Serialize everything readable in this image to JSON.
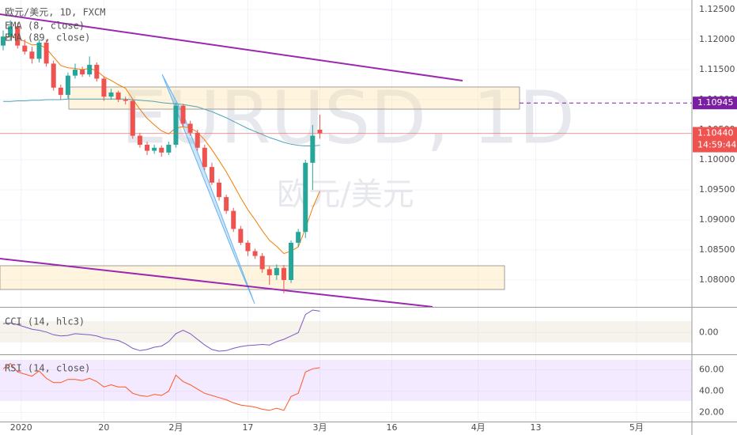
{
  "chart_data": [
    {
      "type": "candlestick",
      "title": "欧元/美元, 1D, FXCM",
      "watermark": "EURUSD, 1D",
      "watermark_subtitle": "欧元/美元",
      "up_color": "#26a69a",
      "down_color": "#ef5350",
      "ohlc": {
        "open": [
          1.119,
          1.1205,
          1.1222,
          1.119,
          1.118,
          1.1168,
          1.1195,
          1.116,
          1.112,
          1.1108,
          1.114,
          1.115,
          1.1142,
          1.1158,
          1.1135,
          1.1105,
          1.1112,
          1.11,
          1.1098,
          1.104,
          1.1025,
          1.1015,
          1.102,
          1.1012,
          1.1025,
          1.109,
          1.106,
          1.1045,
          1.102,
          1.0988,
          1.0962,
          1.0938,
          1.0915,
          1.0885,
          1.0862,
          1.0848,
          1.084,
          1.0818,
          1.0808,
          1.082,
          1.08,
          1.0862,
          1.088,
          1.0995,
          1.105
        ],
        "high": [
          1.1215,
          1.1232,
          1.1228,
          1.12,
          1.1188,
          1.12,
          1.12,
          1.1165,
          1.1125,
          1.1145,
          1.116,
          1.1155,
          1.1172,
          1.1162,
          1.1138,
          1.1118,
          1.1115,
          1.1105,
          1.11,
          1.1045,
          1.103,
          1.1025,
          1.1024,
          1.103,
          1.1095,
          1.1093,
          1.1065,
          1.105,
          1.1025,
          1.0995,
          1.0968,
          1.0942,
          1.092,
          1.089,
          1.0866,
          1.0852,
          1.0845,
          1.0823,
          1.0826,
          1.0825,
          1.0866,
          1.0885,
          1.1,
          1.1058,
          1.1075
        ],
        "low": [
          1.1182,
          1.1198,
          1.1185,
          1.1175,
          1.116,
          1.1162,
          1.1155,
          1.1115,
          1.11,
          1.1102,
          1.1135,
          1.1138,
          1.1138,
          1.113,
          1.1098,
          1.11,
          1.1096,
          1.1092,
          1.1035,
          1.102,
          1.1008,
          1.101,
          1.1005,
          1.1008,
          1.102,
          1.1055,
          1.104,
          1.1015,
          1.0983,
          1.0958,
          1.0932,
          1.091,
          1.088,
          1.0858,
          1.084,
          1.0835,
          1.0812,
          1.0792,
          1.08,
          1.0778,
          1.0795,
          1.0855,
          1.087,
          1.095,
          1.1035
        ],
        "close": [
          1.1205,
          1.1222,
          1.119,
          1.118,
          1.1168,
          1.1195,
          1.116,
          1.112,
          1.1108,
          1.114,
          1.115,
          1.1142,
          1.1158,
          1.1135,
          1.1105,
          1.1112,
          1.11,
          1.1098,
          1.104,
          1.1025,
          1.1015,
          1.102,
          1.1012,
          1.1025,
          1.109,
          1.106,
          1.1045,
          1.102,
          1.0988,
          1.0962,
          1.0938,
          1.0915,
          1.0885,
          1.0862,
          1.0848,
          1.084,
          1.0818,
          1.0808,
          1.082,
          1.08,
          1.0862,
          1.088,
          1.0995,
          1.104,
          1.1044
        ]
      },
      "series": [
        {
          "name": "EMA (8, close)",
          "color": "#f57c00",
          "values": [
            1.12,
            1.1205,
            1.1202,
            1.1197,
            1.1191,
            1.1192,
            1.1185,
            1.1171,
            1.1157,
            1.1153,
            1.1152,
            1.115,
            1.1152,
            1.1148,
            1.1138,
            1.1132,
            1.1125,
            1.1119,
            1.1101,
            1.1084,
            1.1069,
            1.1058,
            1.1048,
            1.1043,
            1.1053,
            1.1055,
            1.1053,
            1.1046,
            1.1033,
            1.1017,
            1.0999,
            1.098,
            1.0959,
            1.0937,
            1.0917,
            1.09,
            1.0882,
            1.0866,
            1.0856,
            1.0844,
            1.0848,
            1.0855,
            1.0886,
            1.092,
            1.0948
          ]
        },
        {
          "name": "EMA (89, close)",
          "color": "#4fa3b8",
          "values": [
            1.1097,
            1.1097,
            1.1098,
            1.1098,
            1.1099,
            1.1099,
            1.11,
            1.11,
            1.11,
            1.1101,
            1.1101,
            1.1101,
            1.1101,
            1.1101,
            1.1101,
            1.1101,
            1.1101,
            1.1101,
            1.11,
            1.1099,
            1.1098,
            1.1097,
            1.1095,
            1.1094,
            1.1093,
            1.1092,
            1.109,
            1.1088,
            1.1084,
            1.108,
            1.1075,
            1.107,
            1.1064,
            1.1058,
            1.1052,
            1.1047,
            1.1042,
            1.1037,
            1.1033,
            1.1029,
            1.1026,
            1.1024,
            1.1023,
            1.1023,
            1.1024
          ]
        }
      ],
      "price_lines": [
        {
          "value": 1.10945,
          "label": "1.10945",
          "color": "#7b1fa2"
        },
        {
          "value": 1.1044,
          "label": "1.10440",
          "color": "#ef5350",
          "countdown": "14:59:44"
        }
      ],
      "ylim": [
        1.07553,
        1.12658
      ],
      "yticks": [
        {
          "value": 1.125,
          "label": "1.12500"
        },
        {
          "value": 1.12,
          "label": "1.12000"
        },
        {
          "value": 1.115,
          "label": "1.11500"
        },
        {
          "value": 1.11,
          "label": "1.11000"
        },
        {
          "value": 1.105,
          "label": "1.10500"
        },
        {
          "value": 1.1,
          "label": "1.10000"
        },
        {
          "value": 1.095,
          "label": "1.09500"
        },
        {
          "value": 1.09,
          "label": "1.09000"
        },
        {
          "value": 1.085,
          "label": "1.08500"
        },
        {
          "value": 1.08,
          "label": "1.08000"
        }
      ],
      "grid": true
    },
    {
      "type": "line",
      "series": [
        {
          "name": "CCI (14, hlc3)",
          "color": "#7e57c2",
          "values": [
            80,
            85,
            70,
            50,
            30,
            20,
            5,
            -20,
            -30,
            -25,
            -10,
            -15,
            -20,
            -30,
            -50,
            -60,
            -70,
            -100,
            -140,
            -160,
            -150,
            -130,
            -120,
            -80,
            -10,
            20,
            -10,
            -60,
            -110,
            -150,
            -165,
            -160,
            -140,
            -125,
            -115,
            -110,
            -105,
            -110,
            -80,
            -60,
            -30,
            0,
            160,
            200,
            190
          ]
        }
      ],
      "ylim": [
        -193,
        221
      ],
      "yticks": [
        {
          "value": 0,
          "label": "0.00"
        }
      ],
      "grid": true
    },
    {
      "type": "line",
      "series": [
        {
          "name": "RSI (14, close)",
          "color": "#ff5722",
          "values": [
            61,
            66,
            58,
            56,
            54,
            59,
            52,
            48,
            48,
            51,
            51,
            50,
            52,
            49,
            44,
            46,
            44,
            44,
            38,
            36,
            35,
            37,
            36,
            40,
            55,
            49,
            46,
            42,
            38,
            36,
            34,
            32,
            29,
            27,
            26,
            25,
            23,
            22,
            24,
            22,
            35,
            38,
            58,
            61,
            62
          ]
        }
      ],
      "ylim": [
        11.5,
        73.8
      ],
      "yticks": [
        {
          "value": 60,
          "label": "60.00"
        },
        {
          "value": 40,
          "label": "40.00"
        },
        {
          "value": 20,
          "label": "20.00"
        }
      ],
      "grid": true,
      "xlim": [
        -0.44,
        95.7
      ],
      "xticks": [
        {
          "value": 2.5,
          "label": "2020"
        },
        {
          "value": 14,
          "label": "20"
        },
        {
          "value": 24,
          "label": "2月"
        },
        {
          "value": 34,
          "label": "17"
        },
        {
          "value": 44,
          "label": "3月"
        },
        {
          "value": 54,
          "label": "16"
        },
        {
          "value": 66,
          "label": "4月"
        },
        {
          "value": 74,
          "label": "13"
        },
        {
          "value": 88,
          "label": "5月"
        }
      ]
    }
  ]
}
